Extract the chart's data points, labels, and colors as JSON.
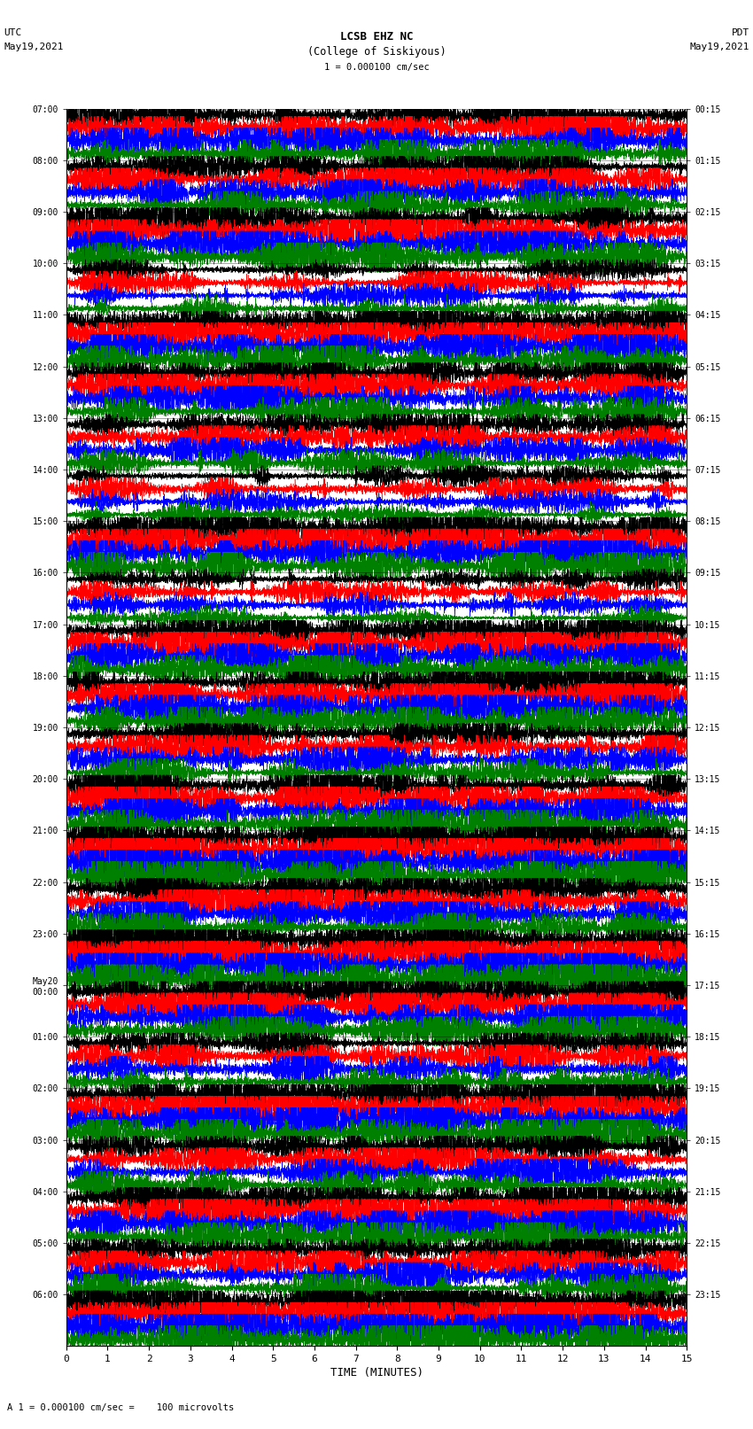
{
  "title_line1": "LCSB EHZ NC",
  "title_line2": "(College of Siskiyous)",
  "scale_text": "1 = 0.000100 cm/sec",
  "left_label_line1": "UTC",
  "left_label_line2": "May19,2021",
  "right_label_line1": "PDT",
  "right_label_line2": "May19,2021",
  "xlabel": "TIME (MINUTES)",
  "bottom_note": "A 1 = 0.000100 cm/sec =    100 microvolts",
  "left_times": [
    "07:00",
    "08:00",
    "09:00",
    "10:00",
    "11:00",
    "12:00",
    "13:00",
    "14:00",
    "15:00",
    "16:00",
    "17:00",
    "18:00",
    "19:00",
    "20:00",
    "21:00",
    "22:00",
    "23:00",
    "May20\n00:00",
    "01:00",
    "02:00",
    "03:00",
    "04:00",
    "05:00",
    "06:00"
  ],
  "right_times": [
    "00:15",
    "01:15",
    "02:15",
    "03:15",
    "04:15",
    "05:15",
    "06:15",
    "07:15",
    "08:15",
    "09:15",
    "10:15",
    "11:15",
    "12:15",
    "13:15",
    "14:15",
    "15:15",
    "16:15",
    "17:15",
    "18:15",
    "19:15",
    "20:15",
    "21:15",
    "22:15",
    "23:15"
  ],
  "n_rows": 24,
  "traces_per_row": 4,
  "colors": [
    "black",
    "red",
    "blue",
    "green"
  ],
  "minutes": 15,
  "samples_per_minute": 400,
  "bg_color": "white",
  "figure_width": 8.5,
  "figure_height": 16.13,
  "dpi": 100
}
